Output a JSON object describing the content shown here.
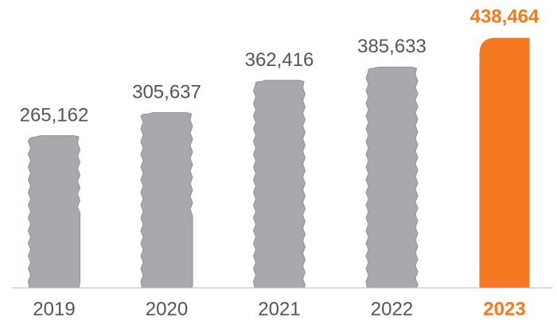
{
  "chart_data": {
    "type": "bar",
    "categories": [
      "2019",
      "2020",
      "2021",
      "2022",
      "2023"
    ],
    "values": [
      265162,
      305637,
      362416,
      385633,
      438464
    ],
    "value_labels": [
      "265,162",
      "305,637",
      "362,416",
      "385,633",
      "438,464"
    ],
    "colors": [
      "#a7a9ac",
      "#a7a9ac",
      "#a7a9ac",
      "#a7a9ac",
      "#f47920"
    ]
  }
}
